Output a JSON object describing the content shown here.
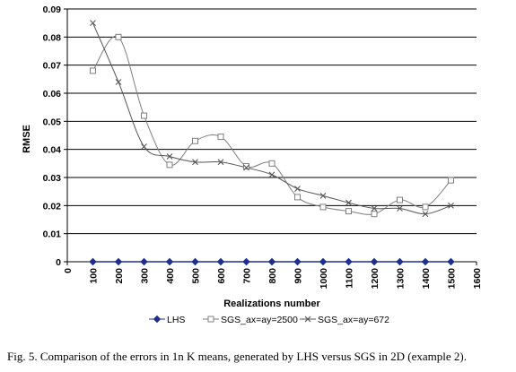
{
  "caption": "Fig. 5. Comparison of the errors in 1n K means, generated by LHS versus SGS in 2D (example 2).",
  "chart_data": {
    "type": "line",
    "title": "",
    "xlabel": "Realizations number",
    "ylabel": "RMSE",
    "xlim": [
      0,
      1600
    ],
    "ylim": [
      0,
      0.09
    ],
    "x_ticks": [
      "0",
      "100",
      "200",
      "300",
      "400",
      "500",
      "600",
      "700",
      "800",
      "900",
      "1000",
      "1100",
      "1200",
      "1300",
      "1400",
      "1500",
      "1600"
    ],
    "y_ticks": [
      "0",
      "0.01",
      "0.02",
      "0.03",
      "0.04",
      "0.05",
      "0.06",
      "0.07",
      "0.08",
      "0.09"
    ],
    "grid": "horizontal",
    "legend_position": "bottom",
    "x": [
      100,
      200,
      300,
      400,
      500,
      600,
      700,
      800,
      900,
      1000,
      1100,
      1200,
      1300,
      1400,
      1500
    ],
    "series": [
      {
        "name": "LHS",
        "marker": "diamond",
        "color": "#1f2f8f",
        "values": [
          0,
          0,
          0,
          0,
          0,
          0,
          0,
          0,
          0,
          0,
          0,
          0,
          0,
          0,
          0
        ]
      },
      {
        "name": "SGS_ax=ay=2500",
        "marker": "square",
        "color": "#7f7f7f",
        "values": [
          0.068,
          0.08,
          0.052,
          0.0345,
          0.043,
          0.0445,
          0.034,
          0.035,
          0.023,
          0.0195,
          0.018,
          0.017,
          0.022,
          0.0195,
          0.029
        ]
      },
      {
        "name": "SGS_ax=ay=672",
        "marker": "x",
        "color": "#555555",
        "values": [
          0.085,
          0.064,
          0.041,
          0.0375,
          0.0355,
          0.0355,
          0.0335,
          0.031,
          0.026,
          0.0235,
          0.021,
          0.019,
          0.019,
          0.017,
          0.02
        ]
      }
    ]
  }
}
